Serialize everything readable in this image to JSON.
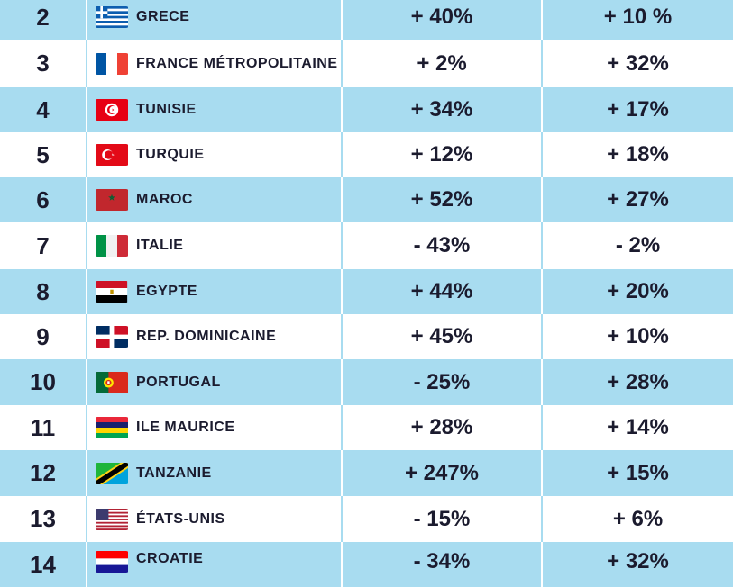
{
  "rows": [
    {
      "rank": "2",
      "country": "GRECE",
      "v1": "+ 40%",
      "v2": "+ 10 %",
      "flag": "greece-flag-icon"
    },
    {
      "rank": "3",
      "country": "FRANCE MÉTROPOLITAINE",
      "v1": "+ 2%",
      "v2": "+ 32%",
      "flag": "france-flag-icon"
    },
    {
      "rank": "4",
      "country": "TUNISIE",
      "v1": "+ 34%",
      "v2": "+ 17%",
      "flag": "tunisia-flag-icon"
    },
    {
      "rank": "5",
      "country": "TURQUIE",
      "v1": "+ 12%",
      "v2": "+ 18%",
      "flag": "turkey-flag-icon"
    },
    {
      "rank": "6",
      "country": "MAROC",
      "v1": "+ 52%",
      "v2": "+ 27%",
      "flag": "morocco-flag-icon"
    },
    {
      "rank": "7",
      "country": "ITALIE",
      "v1": "- 43%",
      "v2": "- 2%",
      "flag": "italy-flag-icon"
    },
    {
      "rank": "8",
      "country": "EGYPTE",
      "v1": "+ 44%",
      "v2": "+ 20%",
      "flag": "egypt-flag-icon"
    },
    {
      "rank": "9",
      "country": "REP. DOMINICAINE",
      "v1": "+ 45%",
      "v2": "+ 10%",
      "flag": "dominican-republic-flag-icon"
    },
    {
      "rank": "10",
      "country": "PORTUGAL",
      "v1": "- 25%",
      "v2": "+ 28%",
      "flag": "portugal-flag-icon"
    },
    {
      "rank": "11",
      "country": "ILE MAURICE",
      "v1": "+ 28%",
      "v2": "+ 14%",
      "flag": "mauritius-flag-icon"
    },
    {
      "rank": "12",
      "country": "TANZANIE",
      "v1": "+ 247%",
      "v2": "+ 15%",
      "flag": "tanzania-flag-icon"
    },
    {
      "rank": "13",
      "country": "ÉTATS-UNIS",
      "v1": "- 15%",
      "v2": "+ 6%",
      "flag": "usa-flag-icon"
    },
    {
      "rank": "14",
      "country": "CROATIE",
      "v1": "- 34%",
      "v2": "+ 32%",
      "flag": "croatia-flag-icon"
    }
  ],
  "colors": {
    "band": "#a8dcf0",
    "text": "#1b1b2e"
  }
}
